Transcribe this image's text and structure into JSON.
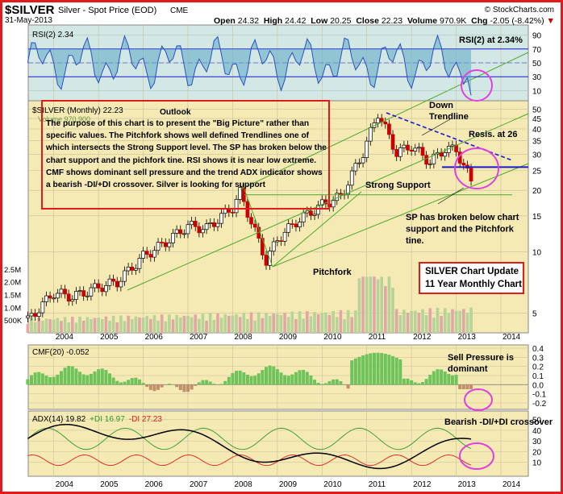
{
  "header": {
    "symbol": "$SILVER",
    "name": "Silver - Spot Price (EOD)",
    "exchange": "CME",
    "date": "31-May-2013",
    "open_label": "Open",
    "open": "24.32",
    "high_label": "High",
    "high": "24.42",
    "low_label": "Low",
    "low": "20.25",
    "close_label": "Close",
    "close": "22.23",
    "volume_label": "Volume",
    "volume": "970.9K",
    "chg_label": "Chg",
    "chg": "-2.05 (-8.42%)",
    "watermark": "© StockCharts.com"
  },
  "rsi_panel": {
    "label": "RSI(2) 2.34",
    "annotation": "RSI(2) at 2.34%",
    "ticks": [
      "90",
      "70",
      "50",
      "30",
      "10"
    ]
  },
  "price_panel": {
    "legend": "$SILVER (Monthly) 22.23",
    "legend_volume": "Volume 970,900",
    "ticks": [
      "50",
      "45",
      "40",
      "35",
      "30",
      "25",
      "20",
      "15",
      "10",
      "5"
    ],
    "volume_ticks": [
      "2.5M",
      "2.0M",
      "1.5M",
      "1.0M",
      "500K"
    ],
    "labels": {
      "down_trendline": "Down\nTrendline",
      "resistance": "Resis. at 26",
      "strong_support": "Strong Support",
      "pitchfork": "Pitchfork",
      "broken": "SP has broken below chart\nsupport and the Pitchfork\ntine."
    },
    "outlook_title": "Outlook",
    "outlook_text": "The purpose of this chart is to present the \"Big Picture\" rather than specific values. The Pitchfork shows well defined Trendlines one of which intersects the Strong Support level. The SP has broken below the chart support and the pichfork tine. RSI shows it is near low extreme. CMF shows dominant sell pressure and the trend ADX indicator shows a bearish -DI/+DI crossover. Silver is looking for support",
    "update_line1": "SILVER Chart Update",
    "update_line2": "11 Year Monthly Chart"
  },
  "cmf_panel": {
    "label": "CMF(20) -0.052",
    "annotation": "Sell Pressure is\ndominant",
    "ticks": [
      "0.4",
      "0.3",
      "0.2",
      "0.1",
      "0.0",
      "-0.1",
      "-0.2"
    ]
  },
  "adx_panel": {
    "label_adx": "ADX(14) 19.82",
    "label_pdi": "+DI 16.97",
    "label_mdi": "-DI 27.23",
    "annotation": "Bearish -DI/+DI crossover",
    "ticks": [
      "50",
      "40",
      "30",
      "20",
      "10"
    ]
  },
  "x_axis": [
    "2004",
    "2005",
    "2006",
    "2007",
    "2008",
    "2009",
    "2010",
    "2011",
    "2012",
    "2013",
    "2014"
  ],
  "colors": {
    "price_bg": "#f5e9b4",
    "rsi_bg": "#d3e8e4",
    "cmf_bg": "#f5e9b4",
    "adx_bg": "#f5e9b4",
    "up_candle": "#000000",
    "down_candle": "#cc0000",
    "pitchfork": "#4caa2c",
    "rsi_fill": "#5ba7c6",
    "rsi_line": "#2c4fbf",
    "cmf_fill": "#6ec45a",
    "highlight": "#e040e0",
    "annotation_box": "#e01b1b"
  },
  "chart_data": [
    {
      "type": "line",
      "name": "silver_monthly_close",
      "x": [
        "2003-06",
        "2004-01",
        "2004-06",
        "2005-01",
        "2005-06",
        "2006-01",
        "2006-06",
        "2007-01",
        "2007-06",
        "2008-01",
        "2008-03",
        "2008-10",
        "2009-01",
        "2009-06",
        "2010-01",
        "2010-06",
        "2010-12",
        "2011-04",
        "2011-09",
        "2012-01",
        "2012-06",
        "2012-10",
        "2013-01",
        "2013-05"
      ],
      "values": [
        4.6,
        6.3,
        6.0,
        6.7,
        7.1,
        9.5,
        10.8,
        13.4,
        13.0,
        16.5,
        19.5,
        9.0,
        11.5,
        14.0,
        17.0,
        18.6,
        30.6,
        48.0,
        30.5,
        33.0,
        27.5,
        32.0,
        31.5,
        22.2
      ],
      "ylim": [
        4,
        55
      ],
      "scale": "log"
    },
    {
      "type": "line",
      "name": "resistance_level",
      "values": [
        26
      ]
    },
    {
      "type": "line",
      "name": "strong_support_level",
      "values": [
        19
      ]
    }
  ]
}
